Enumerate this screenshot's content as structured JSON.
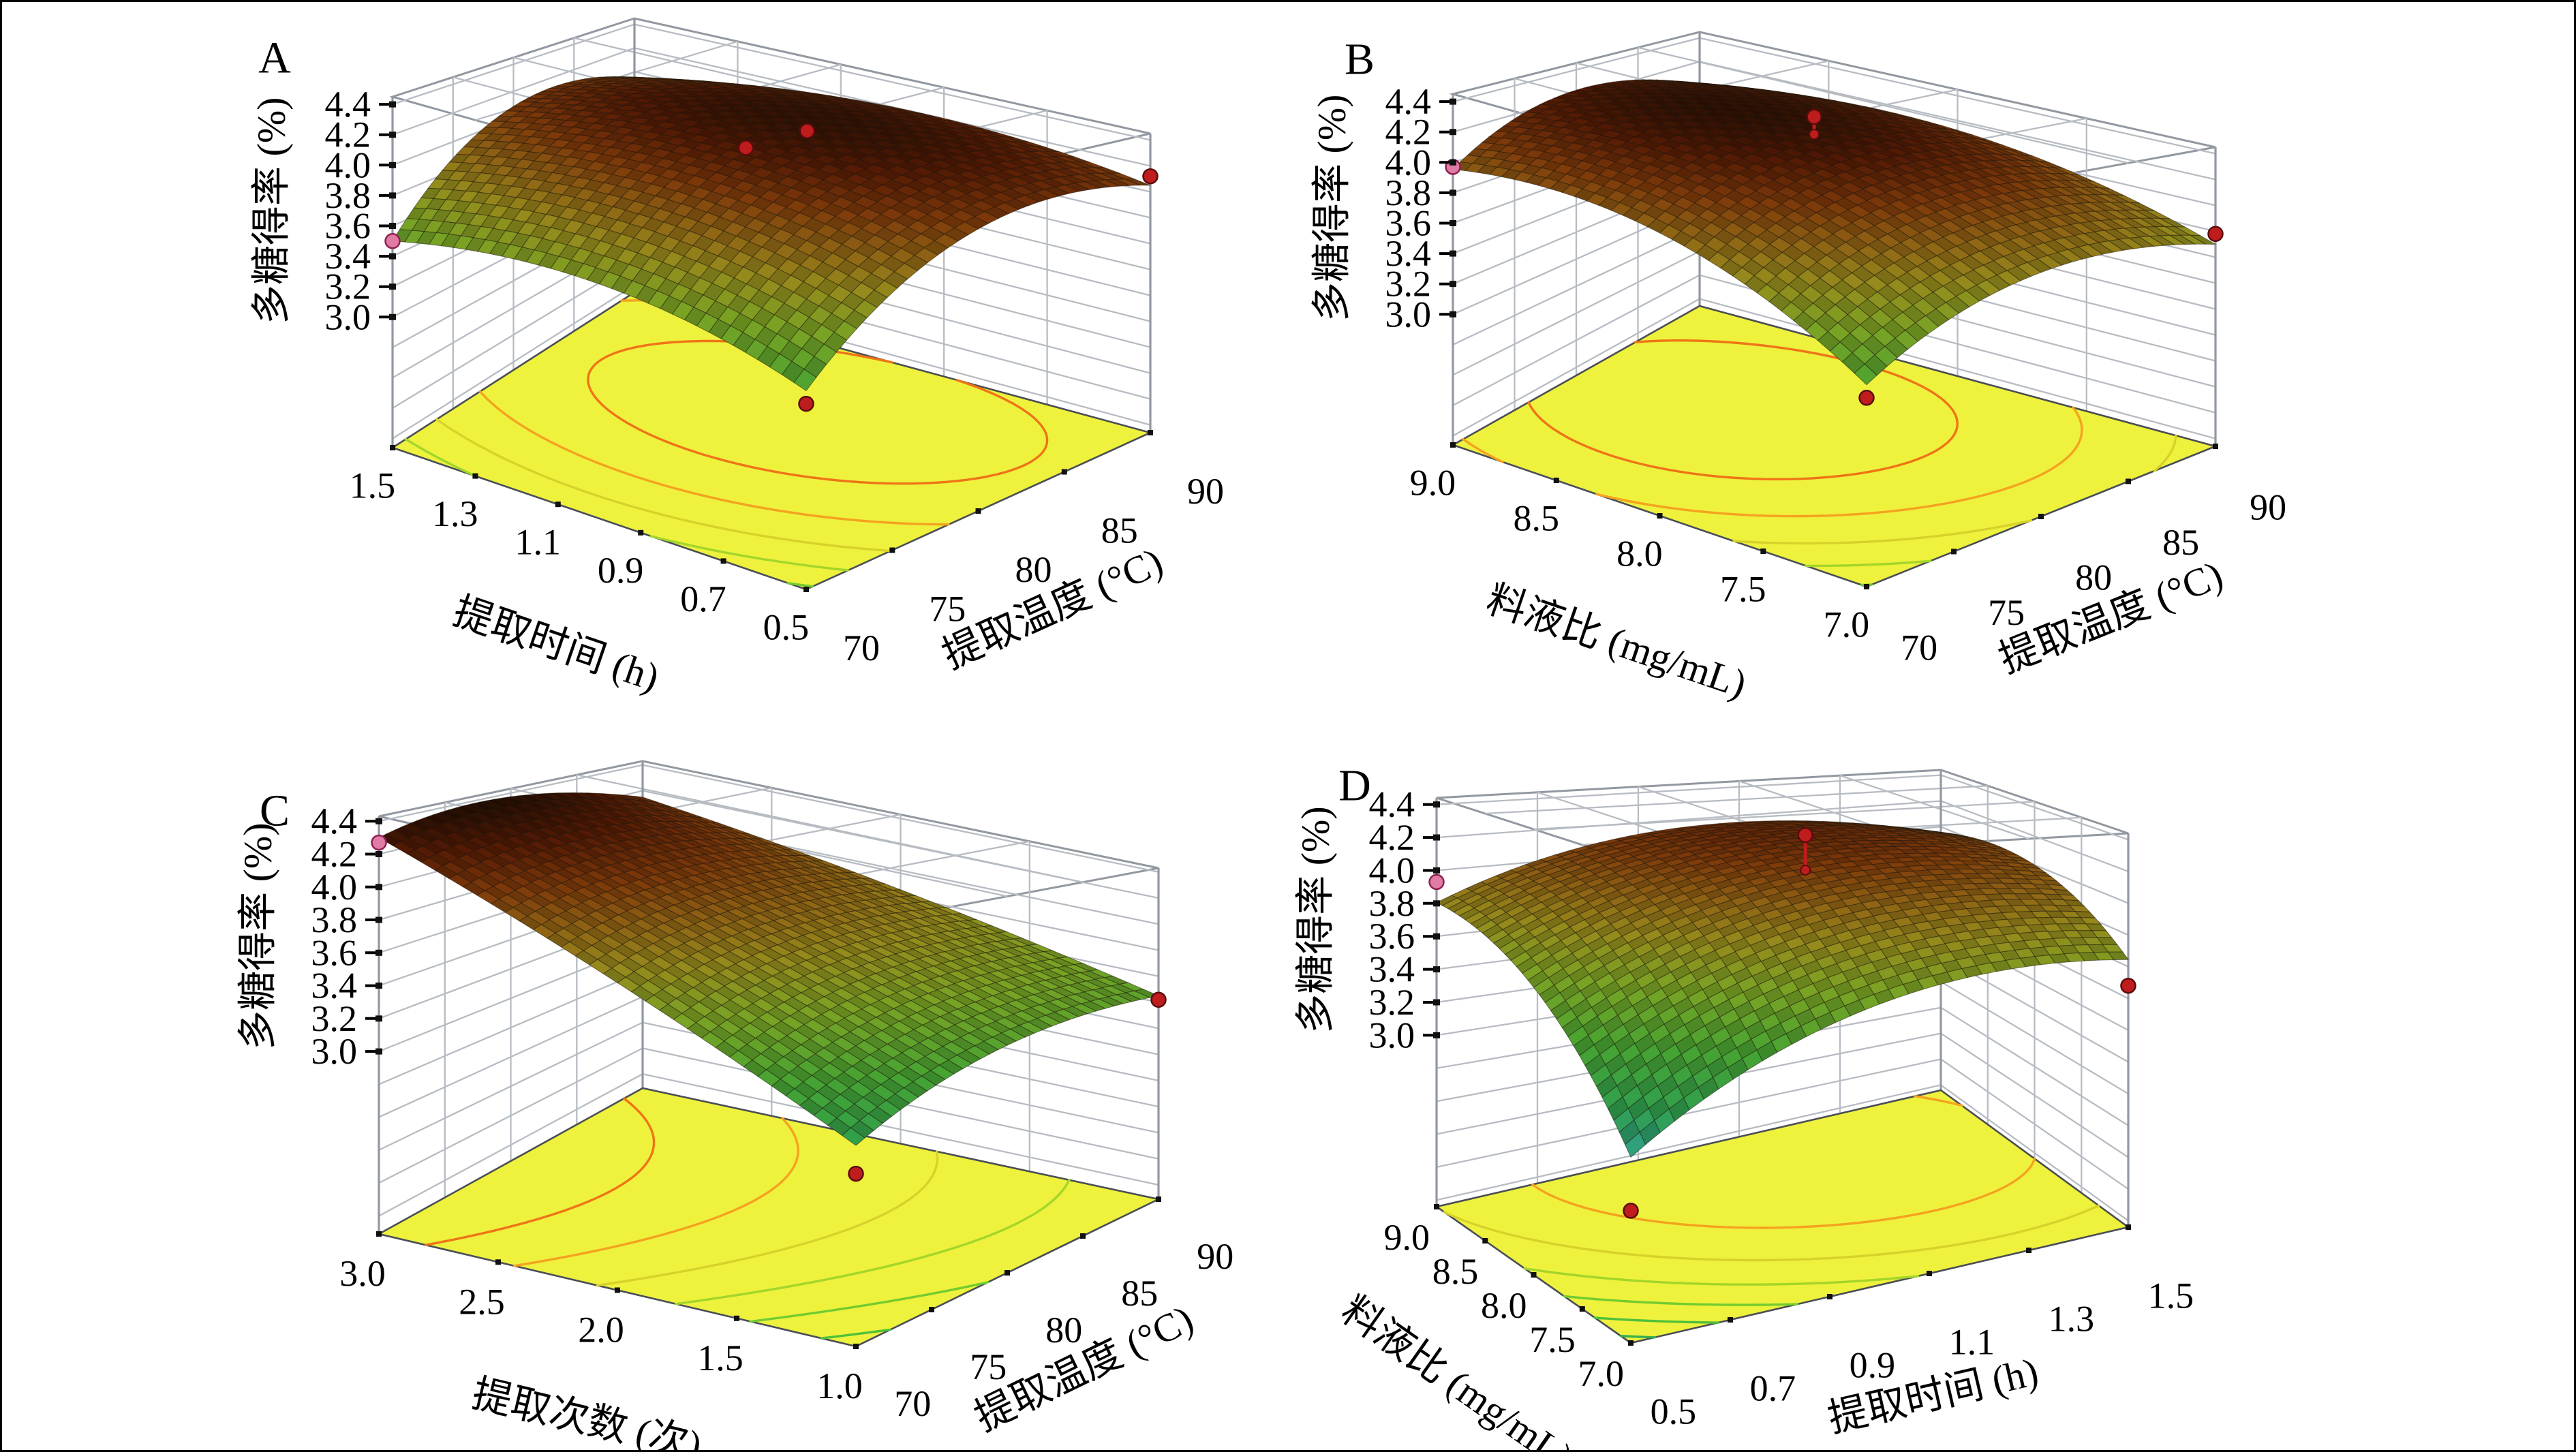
{
  "figure": {
    "background": "#ffffff",
    "border_color": "#000000"
  },
  "chart_data": {
    "type": "surface3d",
    "description": "2x2 grid of 3D response-surface plots (Design-Expert style) of polysaccharide yield vs pairs of extraction factors, each with yellow floor contour projection and red/pink design points",
    "panels": [
      {
        "id": "A",
        "letter": "A",
        "z_axis": {
          "title": "多糖得率 (%)",
          "min": 3.0,
          "max": 4.4,
          "step": 0.2,
          "ticks": [
            "4.4",
            "4.2",
            "4.0",
            "3.8",
            "3.6",
            "3.4",
            "3.2",
            "3.0"
          ]
        },
        "left_axis": {
          "title": "提取时间 (h)",
          "ticks": [
            "1.5",
            "1.3",
            "1.1",
            "0.9",
            "0.7",
            "0.5"
          ]
        },
        "right_axis": {
          "title": "提取温度 (°C)",
          "ticks": [
            "70",
            "75",
            "80",
            "85",
            "90"
          ]
        },
        "model": {
          "c0": 4.28,
          "ca": 0.01,
          "cb": 0.285,
          "caa": -0.2,
          "cbb": -0.365,
          "cab": -0.06
        },
        "corner_values": {
          "front": 3.36,
          "left": 3.5,
          "right": 4.05,
          "back": 3.95,
          "peak": 4.34
        },
        "contour_levels": [
          3.4,
          3.6,
          3.8,
          4.0,
          4.2
        ],
        "design_points": [
          {
            "u": 1.0,
            "v": 0.0,
            "z": 3.5,
            "kind": "below",
            "stem": false
          },
          {
            "u": 0.0,
            "v": 1.0,
            "z": 4.12,
            "kind": "above",
            "stem": false
          },
          {
            "u": 0.42,
            "v": 0.58,
            "z": 4.36,
            "kind": "above",
            "stem": false
          },
          {
            "u": 0.5,
            "v": 0.5,
            "z": 4.22,
            "kind": "above",
            "stem": false
          },
          {
            "u": 0.0,
            "v": 0.0,
            "z": 3.28,
            "kind": "above",
            "stem": false
          }
        ]
      },
      {
        "id": "B",
        "letter": "B",
        "z_axis": {
          "title": "多糖得率 (%)",
          "min": 3.0,
          "max": 4.4,
          "step": 0.2,
          "ticks": [
            "4.4",
            "4.2",
            "4.0",
            "3.8",
            "3.6",
            "3.4",
            "3.2",
            "3.0"
          ]
        },
        "left_axis": {
          "title": "料液比 (mg/mL)",
          "ticks": [
            "9.0",
            "8.5",
            "8.0",
            "7.5",
            "7.0"
          ]
        },
        "right_axis": {
          "title": "提取温度 (°C)",
          "ticks": [
            "70",
            "75",
            "80",
            "85",
            "90"
          ]
        },
        "model": {
          "c0": 4.3,
          "ca": 0.22,
          "cb": 0.0925,
          "caa": -0.27,
          "cbb": -0.27,
          "cab": -0.0675
        },
        "corner_values": {
          "front": 3.38,
          "left": 3.95,
          "right": 3.7,
          "back": 4.0,
          "peak": 4.35
        },
        "contour_levels": [
          3.4,
          3.6,
          3.8,
          4.0,
          4.2
        ],
        "design_points": [
          {
            "u": 1.0,
            "v": 0.0,
            "z": 3.97,
            "kind": "below",
            "stem": false
          },
          {
            "u": 0.0,
            "v": 1.0,
            "z": 3.78,
            "kind": "above",
            "stem": false
          },
          {
            "u": 0.52,
            "v": 0.55,
            "z": 4.44,
            "kind": "above",
            "stem": true
          },
          {
            "u": 0.0,
            "v": 0.0,
            "z": 3.3,
            "kind": "above",
            "stem": false
          }
        ]
      },
      {
        "id": "C",
        "letter": "C",
        "z_axis": {
          "title": "多糖得率 (%)",
          "min": 3.0,
          "max": 4.4,
          "step": 0.2,
          "ticks": [
            "4.4",
            "4.2",
            "4.0",
            "3.8",
            "3.6",
            "3.4",
            "3.2",
            "3.0"
          ]
        },
        "left_axis": {
          "title": "提取次数 (次)",
          "ticks": [
            "3.0",
            "2.5",
            "2.0",
            "1.5",
            "1.0"
          ]
        },
        "right_axis": {
          "title": "提取温度 (°C)",
          "ticks": [
            "70",
            "75",
            "80",
            "85",
            "90"
          ]
        },
        "model": {
          "c0": 3.95,
          "ca": 0.475,
          "cb": 0.05,
          "caa": -0.05,
          "cbb": -0.15,
          "cab": -0.125
        },
        "corner_values": {
          "front": 3.1,
          "left": 4.3,
          "right": 3.45,
          "back": 4.15,
          "peak": 4.35
        },
        "contour_levels": [
          3.2,
          3.4,
          3.6,
          3.8,
          4.0,
          4.2
        ],
        "design_points": [
          {
            "u": 1.0,
            "v": 0.0,
            "z": 4.27,
            "kind": "below",
            "stem": false
          },
          {
            "u": 0.0,
            "v": 1.0,
            "z": 3.42,
            "kind": "above",
            "stem": false
          },
          {
            "u": 0.0,
            "v": 0.0,
            "z": 2.93,
            "kind": "above",
            "stem": false
          }
        ]
      },
      {
        "id": "D",
        "letter": "D",
        "z_axis": {
          "title": "多糖得率 (%)",
          "min": 3.0,
          "max": 4.4,
          "step": 0.2,
          "ticks": [
            "4.4",
            "4.2",
            "4.0",
            "3.8",
            "3.6",
            "3.4",
            "3.2",
            "3.0"
          ]
        },
        "left_axis": {
          "title": "料液比 (mg/mL)",
          "ticks": [
            "9.0",
            "8.5",
            "8.0",
            "7.5",
            "7.0"
          ]
        },
        "right_axis": {
          "title": "提取时间 (h)",
          "ticks": [
            "0.5",
            "0.7",
            "0.9",
            "1.1",
            "1.3",
            "1.5"
          ]
        },
        "model": {
          "c0": 4.05,
          "ca": 0.3,
          "cb": 0.22,
          "caa": -0.2,
          "cbb": -0.27,
          "cab": -0.145
        },
        "corner_values": {
          "front": 2.77,
          "left": 3.9,
          "right": 3.55,
          "back": 4.05,
          "peak": 4.21
        },
        "contour_levels": [
          3.0,
          3.2,
          3.4,
          3.6,
          3.8,
          4.0
        ],
        "design_points": [
          {
            "u": 1.0,
            "v": 0.0,
            "z": 3.93,
            "kind": "below",
            "stem": false
          },
          {
            "u": 0.52,
            "v": 0.55,
            "z": 4.3,
            "kind": "above",
            "stem": true
          },
          {
            "u": 0.0,
            "v": 1.0,
            "z": 3.48,
            "kind": "above",
            "stem": false
          },
          {
            "u": 0.0,
            "v": 0.0,
            "z": 2.64,
            "kind": "above",
            "stem": false
          }
        ]
      }
    ]
  },
  "colors": {
    "floor_fill": "#eef23d",
    "floor_edge": "#4a4e55",
    "wall_grid": "#b7bcc3",
    "cage_edge": "#9298a1",
    "mesh_stroke": "rgba(25,18,8,0.5)",
    "tick_mark": "#000000",
    "point_above_fill": "#bf1d1d",
    "point_above_stroke": "#5a0c0c",
    "point_below_fill": "#e07ba6",
    "point_below_stroke": "#8f2050",
    "stem": "#bf1d1d",
    "surface_stops": [
      [
        2.6,
        "#2f66c0"
      ],
      [
        2.9,
        "#2f9f93"
      ],
      [
        3.1,
        "#2f9f4d"
      ],
      [
        3.35,
        "#46a332"
      ],
      [
        3.6,
        "#79a324"
      ],
      [
        3.8,
        "#958a1c"
      ],
      [
        3.95,
        "#8f6414"
      ],
      [
        4.1,
        "#7e3a0a"
      ],
      [
        4.25,
        "#541a04"
      ],
      [
        4.4,
        "#1c0b02"
      ]
    ],
    "contour_stops": [
      [
        3.0,
        "#35b04f"
      ],
      [
        3.2,
        "#4fc03a"
      ],
      [
        3.4,
        "#72cc2f"
      ],
      [
        3.6,
        "#a4d52a"
      ],
      [
        3.8,
        "#d7d22a"
      ],
      [
        4.0,
        "#f5a21f"
      ],
      [
        4.2,
        "#ef7417"
      ]
    ]
  }
}
